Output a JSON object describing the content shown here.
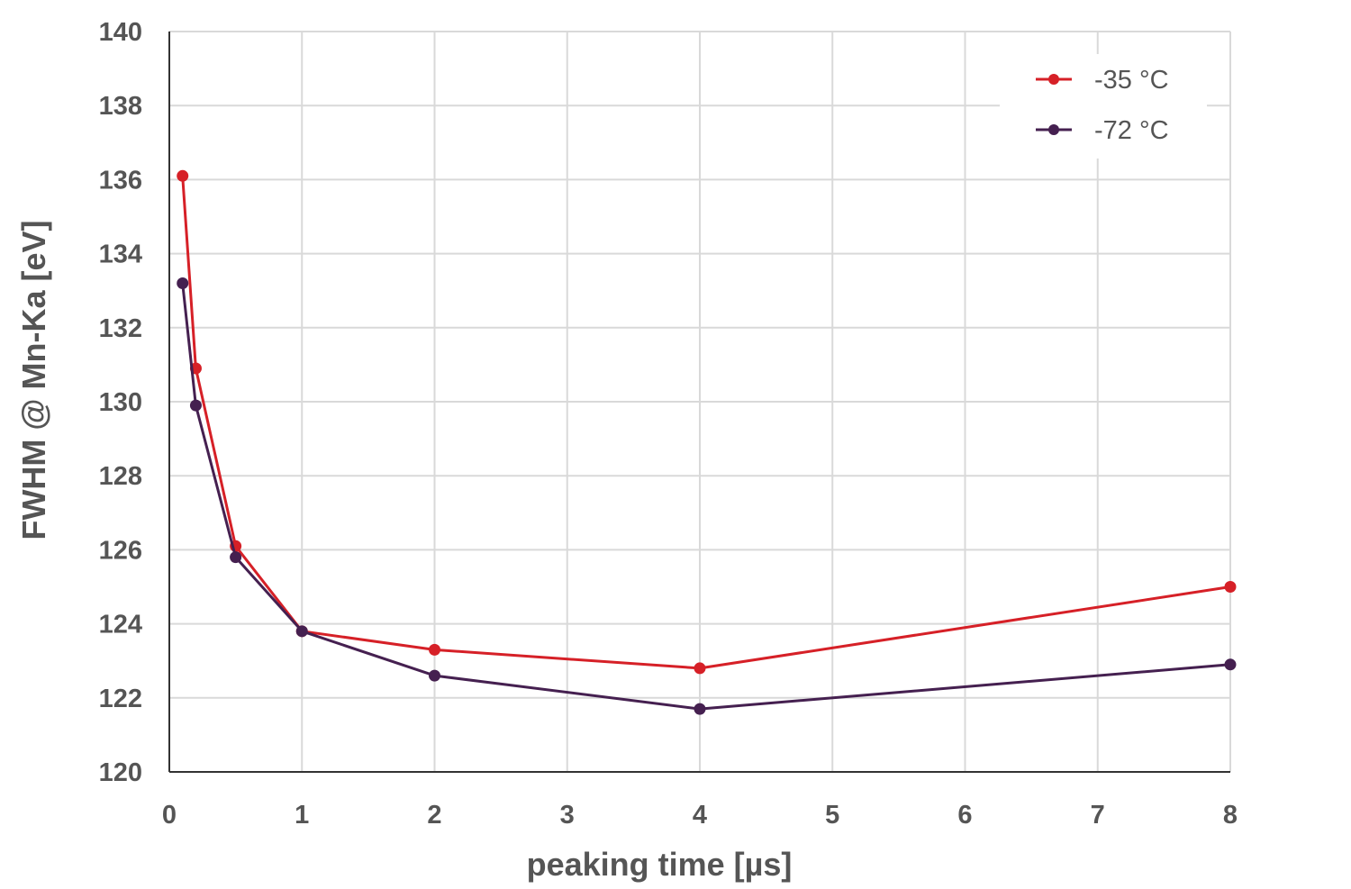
{
  "chart_data": {
    "type": "line",
    "xlabel": "peaking time [µs]",
    "ylabel": "FWHM @ Mn-Ka [eV]",
    "x_ticks": [
      "0",
      "1",
      "2",
      "3",
      "4",
      "5",
      "6",
      "7",
      "8"
    ],
    "x_tick_positions": [
      0,
      1,
      2,
      3,
      4,
      5,
      6,
      7,
      8
    ],
    "y_ticks": [
      "120",
      "122",
      "124",
      "126",
      "128",
      "130",
      "132",
      "134",
      "136",
      "138",
      "140"
    ],
    "ylim": [
      120,
      140
    ],
    "xlim": [
      0,
      8
    ],
    "grid": true,
    "legend_position": "top-right",
    "series": [
      {
        "name": "-35 °C",
        "color": "#d62027",
        "x": [
          0.1,
          0.2,
          0.5,
          1,
          2,
          4,
          8
        ],
        "values": [
          136.1,
          130.9,
          126.1,
          123.8,
          123.3,
          122.8,
          125.0
        ]
      },
      {
        "name": "-72 °C",
        "color": "#452050",
        "x": [
          0.1,
          0.2,
          0.5,
          1,
          2,
          4,
          8
        ],
        "values": [
          133.2,
          129.9,
          125.8,
          123.8,
          122.6,
          121.7,
          122.9
        ]
      }
    ]
  }
}
